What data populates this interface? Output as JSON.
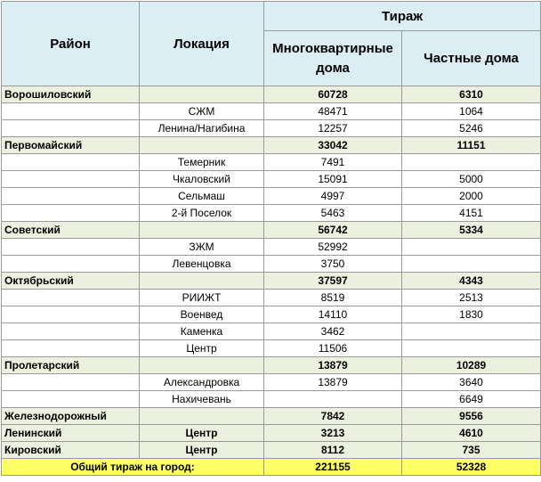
{
  "header": {
    "region": "Район",
    "location": "Локация",
    "circulation": "Тираж",
    "apartments": "Многоквартирные дома",
    "private": "Частные дома"
  },
  "districts": [
    {
      "name": "Ворошиловский",
      "location": null,
      "apartments": 60728,
      "private": 6310,
      "locations": [
        {
          "name": "СЖМ",
          "apartments": 48471,
          "private": 1064
        },
        {
          "name": "Ленина/Нагибина",
          "apartments": 12257,
          "private": 5246
        }
      ]
    },
    {
      "name": "Первомайский",
      "location": null,
      "apartments": 33042,
      "private": 11151,
      "locations": [
        {
          "name": "Темерник",
          "apartments": 7491,
          "private": null
        },
        {
          "name": "Чкаловский",
          "apartments": 15091,
          "private": 5000
        },
        {
          "name": "Сельмаш",
          "apartments": 4997,
          "private": 2000
        },
        {
          "name": "2-й Поселок",
          "apartments": 5463,
          "private": 4151
        }
      ]
    },
    {
      "name": "Советский",
      "location": null,
      "apartments": 56742,
      "private": 5334,
      "locations": [
        {
          "name": "ЗЖМ",
          "apartments": 52992,
          "private": null
        },
        {
          "name": "Левенцовка",
          "apartments": 3750,
          "private": null
        }
      ]
    },
    {
      "name": "Октябрьский",
      "location": null,
      "apartments": 37597,
      "private": 4343,
      "locations": [
        {
          "name": "РИИЖТ",
          "apartments": 8519,
          "private": 2513
        },
        {
          "name": "Военвед",
          "apartments": 14110,
          "private": 1830
        },
        {
          "name": "Каменка",
          "apartments": 3462,
          "private": null
        },
        {
          "name": "Центр",
          "apartments": 11506,
          "private": null
        }
      ]
    },
    {
      "name": "Пролетарский",
      "location": null,
      "apartments": 13879,
      "private": 10289,
      "locations": [
        {
          "name": "Александровка",
          "apartments": 13879,
          "private": 3640
        },
        {
          "name": "Нахичевань",
          "apartments": null,
          "private": 6649
        }
      ]
    },
    {
      "name": "Железнодорожный",
      "location": null,
      "apartments": 7842,
      "private": 9556,
      "locations": []
    },
    {
      "name": "Ленинский",
      "location": "Центр",
      "apartments": 3213,
      "private": 4610,
      "locations": []
    },
    {
      "name": "Кировский",
      "location": "Центр",
      "apartments": 8112,
      "private": 735,
      "locations": []
    }
  ],
  "total": {
    "label": "Общий тираж на город:",
    "apartments": 221155,
    "private": 52328
  }
}
